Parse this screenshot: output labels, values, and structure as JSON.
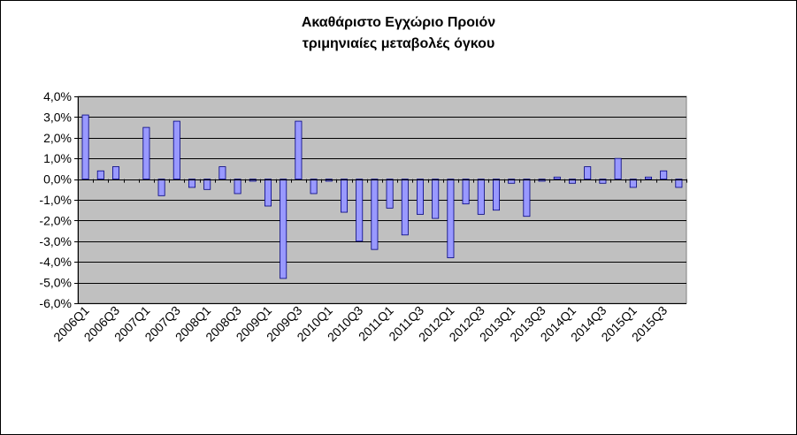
{
  "chart_data": {
    "type": "bar",
    "title": "Ακαθάριστο Εγχώριο Προιόν",
    "subtitle": "τριμηνιαίες μεταβολές όγκου",
    "xlabel": "",
    "ylabel": "",
    "ylim": [
      -6.0,
      4.0
    ],
    "y_ticks": [
      "4,0%",
      "3,0%",
      "2,0%",
      "1,0%",
      "0,0%",
      "-1,0%",
      "-2,0%",
      "-3,0%",
      "-4,0%",
      "-5,0%",
      "-6,0%"
    ],
    "y_tick_values": [
      4,
      3,
      2,
      1,
      0,
      -1,
      -2,
      -3,
      -4,
      -5,
      -6
    ],
    "grid": true,
    "legend": "none",
    "categories": [
      "2006Q1",
      "2006Q2",
      "2006Q3",
      "2006Q4",
      "2007Q1",
      "2007Q2",
      "2007Q3",
      "2007Q4",
      "2008Q1",
      "2008Q2",
      "2008Q3",
      "2008Q4",
      "2009Q1",
      "2009Q2",
      "2009Q3",
      "2009Q4",
      "2010Q1",
      "2010Q2",
      "2010Q3",
      "2010Q4",
      "2011Q1",
      "2011Q2",
      "2011Q3",
      "2011Q4",
      "2012Q1",
      "2012Q2",
      "2012Q3",
      "2012Q4",
      "2013Q1",
      "2013Q2",
      "2013Q3",
      "2013Q4",
      "2014Q1",
      "2014Q2",
      "2014Q3",
      "2014Q4",
      "2015Q1",
      "2015Q2",
      "2015Q3",
      "2015Q4"
    ],
    "x_tick_labels": [
      "2006Q1",
      "2006Q3",
      "2007Q1",
      "2007Q3",
      "2008Q1",
      "2008Q3",
      "2009Q1",
      "2009Q3",
      "2010Q1",
      "2010Q3",
      "2011Q1",
      "2011Q3",
      "2012Q1",
      "2012Q3",
      "2013Q1",
      "2013Q3",
      "2014Q1",
      "2014Q3",
      "2015Q1",
      "2015Q3"
    ],
    "values": [
      3.1,
      0.4,
      0.6,
      0.0,
      2.5,
      -0.8,
      2.8,
      -0.4,
      -0.5,
      0.6,
      -0.7,
      -0.1,
      -1.3,
      -4.8,
      2.8,
      -0.7,
      -0.1,
      -1.6,
      -3.0,
      -3.4,
      -1.4,
      -2.7,
      -1.7,
      -1.9,
      -3.8,
      -1.2,
      -1.7,
      -1.5,
      -0.2,
      -1.8,
      -0.1,
      0.1,
      -0.2,
      0.6,
      -0.2,
      1.0,
      -0.4,
      0.1,
      0.4,
      -0.4
    ],
    "colors": {
      "plot_background": "#c0c0c0",
      "bar_fill": "#9999ff",
      "bar_stroke": "#000080",
      "grid": "#000000"
    }
  }
}
